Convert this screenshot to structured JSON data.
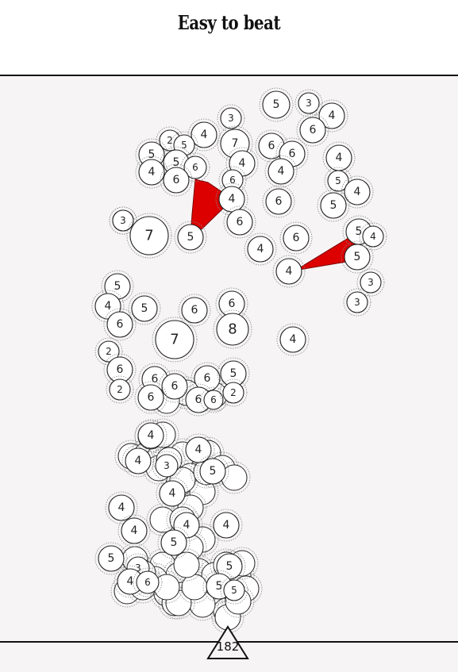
{
  "title": "Easy to beat",
  "move_counter": "182",
  "colors": {
    "link": "#dd0000",
    "node_fill": "#ffffff",
    "node_stroke": "#222222",
    "board": "#f6f4f5"
  },
  "nodes": [
    {
      "v": "5"
    },
    {
      "v": "3"
    },
    {
      "v": "4"
    },
    {
      "v": "6"
    },
    {
      "v": "3"
    },
    {
      "v": "3"
    },
    {
      "v": "4"
    },
    {
      "v": "2"
    },
    {
      "v": "5"
    },
    {
      "v": "7"
    },
    {
      "v": "6"
    },
    {
      "v": "6"
    },
    {
      "v": "5"
    },
    {
      "v": "5"
    },
    {
      "v": "4"
    },
    {
      "v": "4"
    },
    {
      "v": "6"
    },
    {
      "v": "4"
    },
    {
      "v": "6"
    },
    {
      "v": "6"
    },
    {
      "v": "5"
    },
    {
      "v": "4"
    },
    {
      "v": "4"
    },
    {
      "v": "6"
    },
    {
      "v": "4"
    },
    {
      "v": "5"
    },
    {
      "v": "3"
    },
    {
      "v": "7"
    },
    {
      "v": "5"
    },
    {
      "v": "6"
    },
    {
      "v": "6"
    },
    {
      "v": "4"
    },
    {
      "v": "5"
    },
    {
      "v": "4"
    },
    {
      "v": "5"
    },
    {
      "v": "4"
    },
    {
      "v": "3"
    },
    {
      "v": "3"
    },
    {
      "v": "5"
    },
    {
      "v": "4"
    },
    {
      "v": "5"
    },
    {
      "v": "6"
    },
    {
      "v": "6"
    },
    {
      "v": "6"
    },
    {
      "v": "8"
    },
    {
      "v": "7"
    },
    {
      "v": "4"
    },
    {
      "v": "2"
    },
    {
      "v": "6"
    },
    {
      "v": "6"
    },
    {
      "v": "6"
    },
    {
      "v": "6"
    },
    {
      "v": "5"
    },
    {
      "v": "2"
    },
    {
      "v": "6"
    },
    {
      "v": "6"
    },
    {
      "v": "6"
    },
    {
      "v": "2"
    },
    {
      "v": "4"
    },
    {
      "v": "4"
    },
    {
      "v": "4"
    },
    {
      "v": "3"
    },
    {
      "v": "5"
    },
    {
      "v": "4"
    },
    {
      "v": "4"
    },
    {
      "v": "4"
    },
    {
      "v": "4"
    },
    {
      "v": "5"
    },
    {
      "v": "5"
    },
    {
      "v": "4"
    },
    {
      "v": "3"
    },
    {
      "v": "5"
    },
    {
      "v": "4"
    },
    {
      "v": "6"
    },
    {
      "v": "5"
    },
    {
      "v": "5"
    }
  ]
}
